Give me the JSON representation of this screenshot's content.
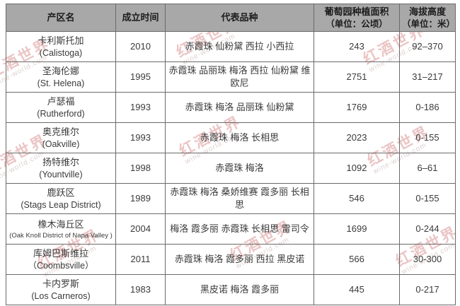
{
  "watermark": {
    "brand": "红酒世界",
    "site": "wine-world.com",
    "color": "#cd6e6e"
  },
  "colors": {
    "header_bg": "#a8a8a8",
    "border": "#6a6a6a",
    "cell_text": "#3a3a3a",
    "header_text": "#1c1c1c"
  },
  "table": {
    "headers": {
      "region": "产区名",
      "founded": "成立时间",
      "varieties": "代表品种",
      "area_line1": "葡萄园种植面积",
      "area_line2": "（单位：公顷）",
      "altitude_line1": "海拔高度",
      "altitude_line2": "（单位：米）"
    },
    "rows": [
      {
        "name_cn": "卡利斯托加",
        "name_en": "(Calistoga)",
        "founded": "2010",
        "varieties": "赤霞珠 仙粉黛 西拉 小西拉",
        "area": "243",
        "altitude": "92–370"
      },
      {
        "name_cn": "圣海伦娜",
        "name_en": "(St. Helena)",
        "founded": "1995",
        "varieties": "赤霞珠 品丽珠 梅洛 西拉 仙粉黛 维欧尼",
        "area": "2751",
        "altitude": "31–217"
      },
      {
        "name_cn": "卢瑟福",
        "name_en": "(Rutherford)",
        "founded": "1993",
        "varieties": "赤霞珠 梅洛 品丽珠 仙粉黛",
        "area": "1769",
        "altitude": "0-186"
      },
      {
        "name_cn": "奥克维尔",
        "name_en": "(Oakville)",
        "founded": "1993",
        "varieties": "赤霞珠 梅洛 长相思",
        "area": "2023",
        "altitude": "0-155"
      },
      {
        "name_cn": "扬特维尔",
        "name_en": "(Yountville)",
        "founded": "1998",
        "varieties": "赤霞珠 梅洛",
        "area": "1092",
        "altitude": "6–61"
      },
      {
        "name_cn": "鹿跃区",
        "name_en": "(Stags Leap District)",
        "founded": "1989",
        "varieties": "赤霞珠 梅洛 桑娇维赛 霞多丽 长相思",
        "area": "546",
        "altitude": "0-155"
      },
      {
        "name_cn": "橡木海丘区",
        "name_en": "(Oak Knoll District of Napa Valley )",
        "founded": "2004",
        "varieties": "梅洛 霞多丽 赤霞珠 长相思 雷司令",
        "area": "1699",
        "altitude": "0-244"
      },
      {
        "name_cn": "库姆巴斯维拉",
        "name_en": "（Coombsville）",
        "founded": "2011",
        "varieties": "赤霞珠 梅洛 霞多丽 西拉 黑皮诺",
        "area": "566",
        "altitude": "30-300"
      },
      {
        "name_cn": "卡内罗斯",
        "name_en": "(Los Carneros)",
        "founded": "1983",
        "varieties": "黑皮诺 梅洛 霞多丽",
        "area": "445",
        "altitude": "0-217"
      }
    ]
  }
}
